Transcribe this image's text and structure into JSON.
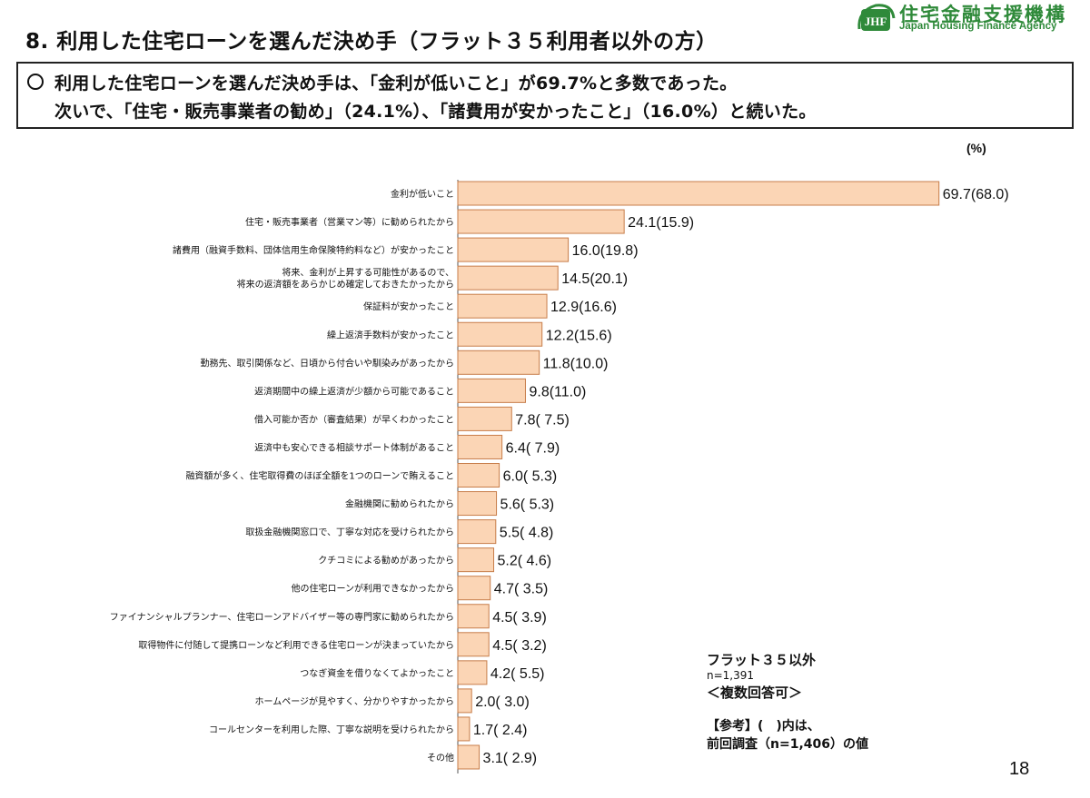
{
  "slide": {
    "title": "8. 利用した住宅ローンを選んだ決め手（フラット３５利用者以外の方）",
    "page_number": "18"
  },
  "logo": {
    "mark_text": "JHF",
    "name_jp": "住宅金融支援機構",
    "name_en": "Japan Housing Finance Agency",
    "color": "#2f8a3a"
  },
  "summary": {
    "line1": "利用した住宅ローンを選んだ決め手は、「金利が低いこと」が69.7%と多数であった。",
    "line2": "次いで、「住宅・販売事業者の勧め」（24.1%）、「諸費用が安かったこと」（16.0%）と続いた。"
  },
  "chart_data": {
    "type": "bar",
    "orientation": "horizontal",
    "unit_label": "(%)",
    "categories": [
      [
        "金利が低いこと"
      ],
      [
        "住宅・販売事業者（営業マン等）に勧められたから"
      ],
      [
        "諸費用（融資手数料、団体信用生命保険特約料など）が安かったこと"
      ],
      [
        "将来、金利が上昇する可能性があるので、",
        "将来の返済額をあらかじめ確定しておきたかったから"
      ],
      [
        "保証料が安かったこと"
      ],
      [
        "繰上返済手数料が安かったこと"
      ],
      [
        "勤務先、取引関係など、日頃から付合いや馴染みがあったから"
      ],
      [
        "返済期間中の繰上返済が少額から可能であること"
      ],
      [
        "借入可能か否か（審査結果）が早くわかったこと"
      ],
      [
        "返済中も安心できる相談サポート体制があること"
      ],
      [
        "融資額が多く、住宅取得費のほぼ全額を1つのローンで賄えること"
      ],
      [
        "金融機関に勧められたから"
      ],
      [
        "取扱金融機関窓口で、丁寧な対応を受けられたから"
      ],
      [
        "クチコミによる勧めがあったから"
      ],
      [
        "他の住宅ローンが利用できなかったから"
      ],
      [
        "ファイナンシャルプランナー、住宅ローンアドバイザー等の専門家に勧められたから"
      ],
      [
        "取得物件に付随して提携ローンなど利用できる住宅ローンが決まっていたから"
      ],
      [
        "つなぎ資金を借りなくてよかったこと"
      ],
      [
        "ホームページが見やすく、分かりやすかったから"
      ],
      [
        "コールセンターを利用した際、丁寧な説明を受けられたから"
      ],
      [
        "その他"
      ]
    ],
    "values": [
      69.7,
      24.1,
      16.0,
      14.5,
      12.9,
      12.2,
      11.8,
      9.8,
      7.8,
      6.4,
      6.0,
      5.6,
      5.5,
      5.2,
      4.7,
      4.5,
      4.5,
      4.2,
      2.0,
      1.7,
      3.1
    ],
    "value_labels": [
      "69.7(68.0)",
      "24.1(15.9)",
      "16.0(19.8)",
      "14.5(20.1)",
      "12.9(16.6)",
      "12.2(15.6)",
      "11.8(10.0)",
      "9.8(11.0)",
      "7.8( 7.5)",
      "6.4( 7.9)",
      "6.0( 5.3)",
      "5.6( 5.3)",
      "5.5( 4.8)",
      "5.2( 4.6)",
      "4.7( 3.5)",
      "4.5( 3.9)",
      "4.5( 3.2)",
      "4.2( 5.5)",
      "2.0( 3.0)",
      "1.7( 2.4)",
      "3.1( 2.9)"
    ],
    "bar_color": "#fbd5b5",
    "bar_edge_color": "#c77d4a",
    "xlim": [
      0,
      70
    ]
  },
  "notes": {
    "title": "フラット３５以外",
    "n": "n=1,391",
    "multi": "＜複数回答可＞",
    "ref_line1": "【参考】(　)内は、",
    "ref_line2": "前回調査（n=1,406）の値"
  }
}
